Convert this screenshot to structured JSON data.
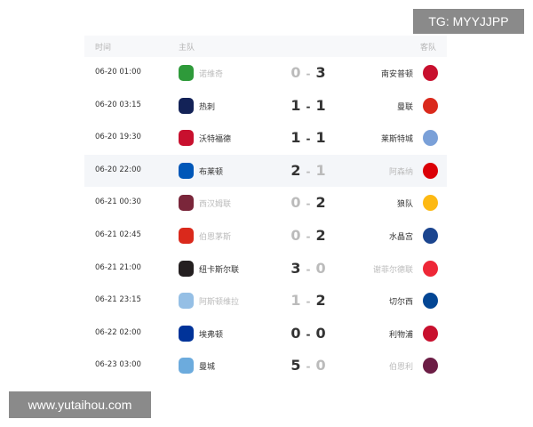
{
  "header": {
    "time": "时间",
    "home": "主队",
    "away": "客队"
  },
  "matches": [
    {
      "time": "06-20 01:00",
      "home": "诺维奇",
      "home_score": "0",
      "away_score": "3",
      "away": "南安普顿",
      "home_color": "#2e9a3a",
      "away_color": "#c8102e",
      "result": "away"
    },
    {
      "time": "06-20 03:15",
      "home": "热刺",
      "home_score": "1",
      "away_score": "1",
      "away": "曼联",
      "home_color": "#132257",
      "away_color": "#da291c",
      "result": "draw"
    },
    {
      "time": "06-20 19:30",
      "home": "沃特福德",
      "home_score": "1",
      "away_score": "1",
      "away": "莱斯特城",
      "home_color": "#c8102e",
      "away_color": "#7aa0d8",
      "result": "draw"
    },
    {
      "time": "06-20 22:00",
      "home": "布莱顿",
      "home_score": "2",
      "away_score": "1",
      "away": "阿森纳",
      "home_color": "#0057b8",
      "away_color": "#db0007",
      "result": "home"
    },
    {
      "time": "06-21 00:30",
      "home": "西汉姆联",
      "home_score": "0",
      "away_score": "2",
      "away": "狼队",
      "home_color": "#7a263a",
      "away_color": "#fdb913",
      "result": "away"
    },
    {
      "time": "06-21 02:45",
      "home": "伯恩茅斯",
      "home_score": "0",
      "away_score": "2",
      "away": "水晶宫",
      "home_color": "#da291c",
      "away_color": "#1b458f",
      "result": "away"
    },
    {
      "time": "06-21 21:00",
      "home": "纽卡斯尔联",
      "home_score": "3",
      "away_score": "0",
      "away": "谢菲尔德联",
      "home_color": "#241f20",
      "away_color": "#ee2737",
      "result": "home"
    },
    {
      "time": "06-21 23:15",
      "home": "阿斯顿维拉",
      "home_score": "1",
      "away_score": "2",
      "away": "切尔西",
      "home_color": "#95bfe5",
      "away_color": "#034694",
      "result": "away"
    },
    {
      "time": "06-22 02:00",
      "home": "埃弗顿",
      "home_score": "0",
      "away_score": "0",
      "away": "利物浦",
      "home_color": "#003399",
      "away_color": "#c8102e",
      "result": "draw"
    },
    {
      "time": "06-23 03:00",
      "home": "曼城",
      "home_score": "5",
      "away_score": "0",
      "away": "伯恩利",
      "home_color": "#6cabdd",
      "away_color": "#6c1d45",
      "result": "home"
    }
  ],
  "highlight_row": 3,
  "score_separator": "-",
  "watermarks": {
    "top": "TG: MYYJJPP",
    "bottom": "www.yutaihou.com"
  }
}
